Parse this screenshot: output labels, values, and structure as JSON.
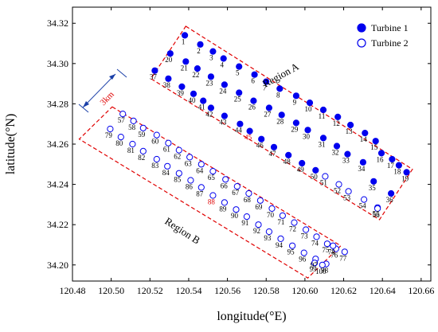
{
  "chart_data": {
    "type": "scatter",
    "title": "",
    "xlabel": "longitude(°E)",
    "ylabel": "latitude(°N)",
    "xlim": [
      120.48,
      120.665
    ],
    "ylim": [
      34.192,
      34.328
    ],
    "x_ticks": [
      "120.48",
      "120.50",
      "120.52",
      "120.54",
      "120.56",
      "120.58",
      "120.60",
      "120.62",
      "120.64",
      "120.66"
    ],
    "y_ticks": [
      "34.20",
      "34.22",
      "34.24",
      "34.26",
      "34.28",
      "34.30",
      "34.32"
    ],
    "legend": {
      "position": "top-right",
      "entries": [
        "Turbine 1",
        "Turbine 2"
      ]
    },
    "regions": [
      {
        "label": "Region A",
        "corners": [
          [
            120.5385,
            34.3185
          ],
          [
            120.6555,
            34.2475
          ],
          [
            120.6385,
            34.2225
          ],
          [
            120.5205,
            34.2925
          ]
        ]
      },
      {
        "label": "Region B",
        "corners": [
          [
            120.5005,
            34.2785
          ],
          [
            120.6185,
            34.2095
          ],
          [
            120.6015,
            34.1935
          ],
          [
            120.4835,
            34.2625
          ]
        ]
      }
    ],
    "distance_annotation": "3km",
    "highlight_color": "#e00000",
    "highlighted_turbines": [
      "45",
      "88"
    ],
    "series": [
      {
        "name": "Turbine 1",
        "marker": "filled-circle",
        "color": "#0000ee",
        "points": [
          {
            "id": "1",
            "x": 120.538,
            "y": 34.314
          },
          {
            "id": "2",
            "x": 120.546,
            "y": 34.3095
          },
          {
            "id": "3",
            "x": 120.5525,
            "y": 34.306
          },
          {
            "id": "4",
            "x": 120.558,
            "y": 34.3025
          },
          {
            "id": "5",
            "x": 120.566,
            "y": 34.2985
          },
          {
            "id": "6",
            "x": 120.574,
            "y": 34.2945
          },
          {
            "id": "7",
            "x": 120.58,
            "y": 34.291
          },
          {
            "id": "8",
            "x": 120.587,
            "y": 34.2875
          },
          {
            "id": "9",
            "x": 120.5955,
            "y": 34.284
          },
          {
            "id": "10",
            "x": 120.6025,
            "y": 34.2805
          },
          {
            "id": "11",
            "x": 120.6095,
            "y": 34.277
          },
          {
            "id": "12",
            "x": 120.617,
            "y": 34.2735
          },
          {
            "id": "13",
            "x": 120.6235,
            "y": 34.2695
          },
          {
            "id": "14",
            "x": 120.631,
            "y": 34.2655
          },
          {
            "id": "15",
            "x": 120.6365,
            "y": 34.2615
          },
          {
            "id": "16",
            "x": 120.6395,
            "y": 34.2555
          },
          {
            "id": "17",
            "x": 120.645,
            "y": 34.2525
          },
          {
            "id": "18",
            "x": 120.6485,
            "y": 34.2495
          },
          {
            "id": "19",
            "x": 120.6525,
            "y": 34.246
          },
          {
            "id": "20",
            "x": 120.5305,
            "y": 34.305
          },
          {
            "id": "21",
            "x": 120.5385,
            "y": 34.301
          },
          {
            "id": "22",
            "x": 120.5445,
            "y": 34.2975
          },
          {
            "id": "23",
            "x": 120.5515,
            "y": 34.2935
          },
          {
            "id": "24",
            "x": 120.5585,
            "y": 34.2895
          },
          {
            "id": "25",
            "x": 120.566,
            "y": 34.2855
          },
          {
            "id": "26",
            "x": 120.5735,
            "y": 34.2815
          },
          {
            "id": "27",
            "x": 120.5815,
            "y": 34.278
          },
          {
            "id": "28",
            "x": 120.588,
            "y": 34.2745
          },
          {
            "id": "29",
            "x": 120.5955,
            "y": 34.2705
          },
          {
            "id": "30",
            "x": 120.6015,
            "y": 34.267
          },
          {
            "id": "31",
            "x": 120.6095,
            "y": 34.263
          },
          {
            "id": "32",
            "x": 120.6165,
            "y": 34.259
          },
          {
            "id": "33",
            "x": 120.622,
            "y": 34.255
          },
          {
            "id": "34",
            "x": 120.63,
            "y": 34.251
          },
          {
            "id": "35",
            "x": 120.6355,
            "y": 34.2415
          },
          {
            "id": "36",
            "x": 120.6445,
            "y": 34.2355
          },
          {
            "id": "37",
            "x": 120.5225,
            "y": 34.2965
          },
          {
            "id": "38",
            "x": 120.5295,
            "y": 34.2925
          },
          {
            "id": "39",
            "x": 120.5365,
            "y": 34.2885
          },
          {
            "id": "40",
            "x": 120.5425,
            "y": 34.285
          },
          {
            "id": "41",
            "x": 120.5475,
            "y": 34.2815
          },
          {
            "id": "42",
            "x": 120.5515,
            "y": 34.278
          },
          {
            "id": "43",
            "x": 120.5585,
            "y": 34.274
          },
          {
            "id": "44",
            "x": 120.5665,
            "y": 34.27
          },
          {
            "id": "45",
            "x": 120.5715,
            "y": 34.2665
          },
          {
            "id": "46",
            "x": 120.5775,
            "y": 34.2625
          },
          {
            "id": "47",
            "x": 120.584,
            "y": 34.2585
          },
          {
            "id": "48",
            "x": 120.5915,
            "y": 34.2545
          },
          {
            "id": "49",
            "x": 120.5985,
            "y": 34.2505
          },
          {
            "id": "50",
            "x": 120.6055,
            "y": 34.247
          }
        ]
      },
      {
        "name": "Turbine 2",
        "marker": "hollow-circle",
        "color": "#0000ee",
        "points": [
          {
            "id": "51",
            "x": 120.6105,
            "y": 34.244
          },
          {
            "id": "52",
            "x": 120.6175,
            "y": 34.24
          },
          {
            "id": "53",
            "x": 120.6225,
            "y": 34.2365
          },
          {
            "id": "54",
            "x": 120.6305,
            "y": 34.2325
          },
          {
            "id": "55",
            "x": 120.6375,
            "y": 34.2285
          },
          {
            "id": "56",
            "x": 120.6375,
            "y": 34.228
          },
          {
            "id": "57",
            "x": 120.506,
            "y": 34.275
          },
          {
            "id": "58",
            "x": 120.5115,
            "y": 34.2715
          },
          {
            "id": "59",
            "x": 120.5165,
            "y": 34.268
          },
          {
            "id": "60",
            "x": 120.5235,
            "y": 34.2645
          },
          {
            "id": "61",
            "x": 120.5295,
            "y": 34.2605
          },
          {
            "id": "62",
            "x": 120.535,
            "y": 34.257
          },
          {
            "id": "63",
            "x": 120.5405,
            "y": 34.2535
          },
          {
            "id": "64",
            "x": 120.5465,
            "y": 34.25
          },
          {
            "id": "65",
            "x": 120.5525,
            "y": 34.2465
          },
          {
            "id": "66",
            "x": 120.559,
            "y": 34.2425
          },
          {
            "id": "67",
            "x": 120.565,
            "y": 34.239
          },
          {
            "id": "68",
            "x": 120.571,
            "y": 34.2355
          },
          {
            "id": "69",
            "x": 120.577,
            "y": 34.232
          },
          {
            "id": "70",
            "x": 120.583,
            "y": 34.228
          },
          {
            "id": "71",
            "x": 120.5885,
            "y": 34.2245
          },
          {
            "id": "72",
            "x": 120.5945,
            "y": 34.221
          },
          {
            "id": "73",
            "x": 120.6005,
            "y": 34.2175
          },
          {
            "id": "74",
            "x": 120.606,
            "y": 34.214
          },
          {
            "id": "75",
            "x": 120.6115,
            "y": 34.2105
          },
          {
            "id": "76",
            "x": 120.616,
            "y": 34.208
          },
          {
            "id": "77",
            "x": 120.6205,
            "y": 34.2065
          },
          {
            "id": "78",
            "x": 120.6145,
            "y": 34.2095
          },
          {
            "id": "79",
            "x": 120.4995,
            "y": 34.2675
          },
          {
            "id": "80",
            "x": 120.505,
            "y": 34.2635
          },
          {
            "id": "81",
            "x": 120.511,
            "y": 34.26
          },
          {
            "id": "82",
            "x": 120.5165,
            "y": 34.2565
          },
          {
            "id": "83",
            "x": 120.5235,
            "y": 34.2525
          },
          {
            "id": "84",
            "x": 120.529,
            "y": 34.249
          },
          {
            "id": "85",
            "x": 120.535,
            "y": 34.2455
          },
          {
            "id": "86",
            "x": 120.541,
            "y": 34.242
          },
          {
            "id": "87",
            "x": 120.5465,
            "y": 34.2385
          },
          {
            "id": "88",
            "x": 120.5525,
            "y": 34.2345
          },
          {
            "id": "89",
            "x": 120.5585,
            "y": 34.231
          },
          {
            "id": "90",
            "x": 120.5645,
            "y": 34.2275
          },
          {
            "id": "91",
            "x": 120.57,
            "y": 34.224
          },
          {
            "id": "92",
            "x": 120.576,
            "y": 34.22
          },
          {
            "id": "93",
            "x": 120.5815,
            "y": 34.2165
          },
          {
            "id": "94",
            "x": 120.5875,
            "y": 34.213
          },
          {
            "id": "95",
            "x": 120.5935,
            "y": 34.2095
          },
          {
            "id": "96",
            "x": 120.5995,
            "y": 34.206
          },
          {
            "id": "97",
            "x": 120.6055,
            "y": 34.203
          },
          {
            "id": "98",
            "x": 120.611,
            "y": 34.2005
          },
          {
            "id": "99",
            "x": 120.605,
            "y": 34.201
          },
          {
            "id": "100",
            "x": 120.609,
            "y": 34.2
          }
        ]
      }
    ]
  }
}
